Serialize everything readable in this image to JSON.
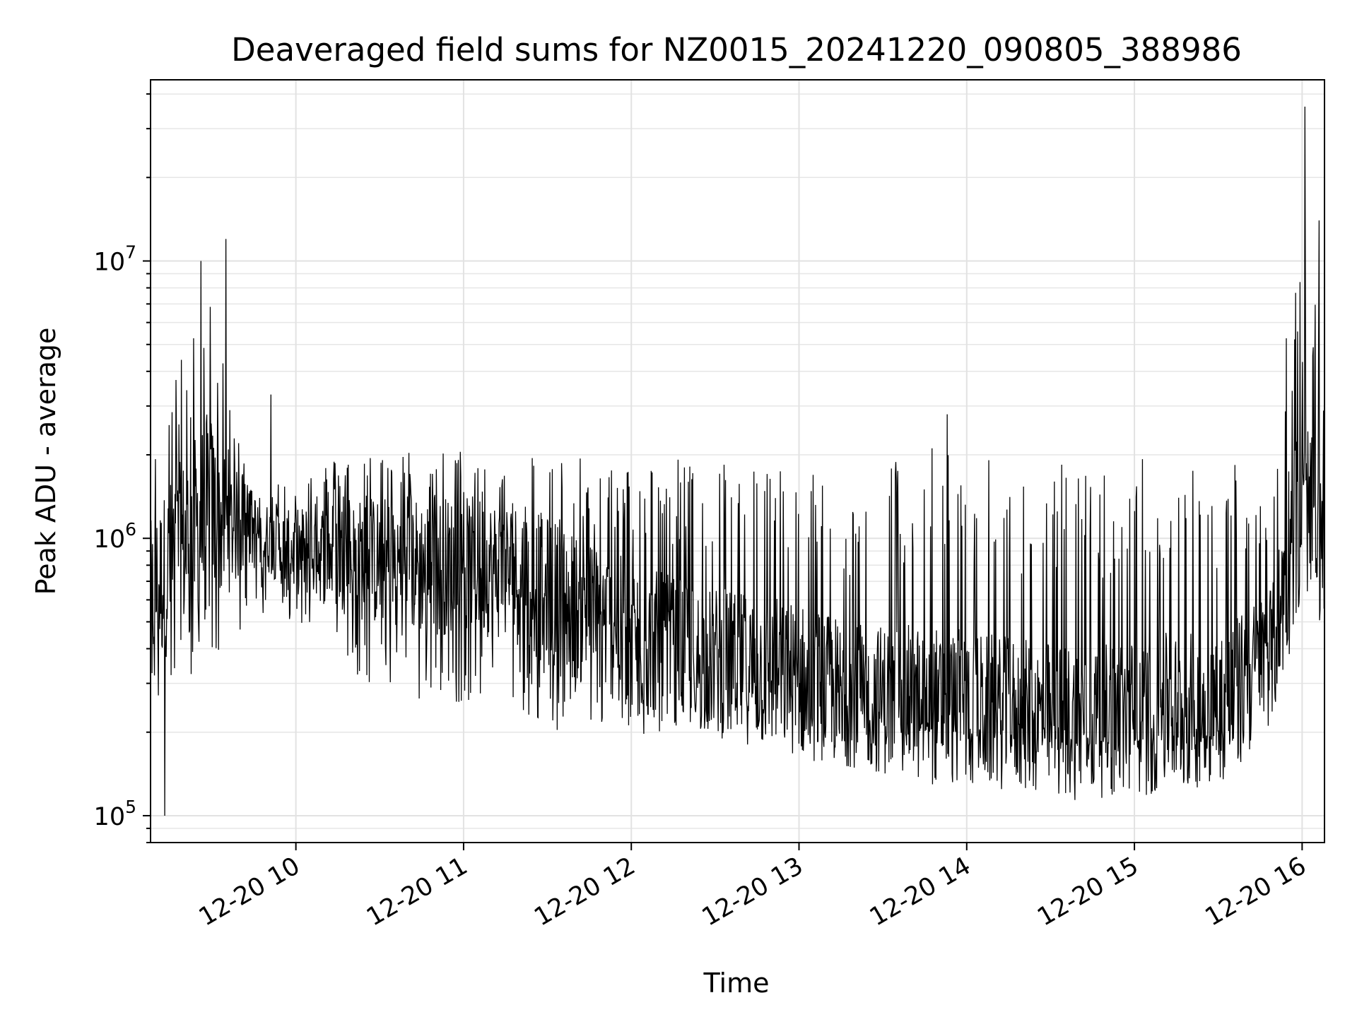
{
  "chart_data": {
    "type": "line",
    "title": "Deaveraged field sums for NZ0015_20241220_090805_388986",
    "xlabel": "Time",
    "ylabel": "Peak ADU - average",
    "yscale": "log",
    "ylim": [
      80000,
      45000000
    ],
    "xlim": [
      "2024-12-20 09:08",
      "2024-12-20 16:08"
    ],
    "grid": true,
    "line_color": "#000000",
    "x_ticks": [
      {
        "value": "2024-12-20 10:00",
        "label": "12-20 10"
      },
      {
        "value": "2024-12-20 11:00",
        "label": "12-20 11"
      },
      {
        "value": "2024-12-20 12:00",
        "label": "12-20 12"
      },
      {
        "value": "2024-12-20 13:00",
        "label": "12-20 13"
      },
      {
        "value": "2024-12-20 14:00",
        "label": "12-20 14"
      },
      {
        "value": "2024-12-20 15:00",
        "label": "12-20 15"
      },
      {
        "value": "2024-12-20 16:00",
        "label": "12-20 16"
      }
    ],
    "y_ticks": [
      {
        "value": 100000,
        "base": "10",
        "exp": "5"
      },
      {
        "value": 1000000,
        "base": "10",
        "exp": "6"
      },
      {
        "value": 10000000,
        "base": "10",
        "exp": "7"
      }
    ],
    "series": [
      {
        "x": [
          "2024-12-20 09:08",
          "2024-12-20 09:15",
          "2024-12-20 09:22",
          "2024-12-20 09:29",
          "2024-12-20 09:36",
          "2024-12-20 09:43",
          "2024-12-20 09:50",
          "2024-12-20 09:57",
          "2024-12-20 10:08",
          "2024-12-20 10:20",
          "2024-12-20 10:35",
          "2024-12-20 10:50",
          "2024-12-20 11:05",
          "2024-12-20 11:20",
          "2024-12-20 11:35",
          "2024-12-20 11:50",
          "2024-12-20 12:05",
          "2024-12-20 12:20",
          "2024-12-20 12:35",
          "2024-12-20 12:50",
          "2024-12-20 13:05",
          "2024-12-20 13:20",
          "2024-12-20 13:35",
          "2024-12-20 13:50",
          "2024-12-20 14:05",
          "2024-12-20 14:20",
          "2024-12-20 14:35",
          "2024-12-20 14:50",
          "2024-12-20 15:05",
          "2024-12-20 15:20",
          "2024-12-20 15:35",
          "2024-12-20 15:50",
          "2024-12-20 15:56",
          "2024-12-20 16:02",
          "2024-12-20 16:08"
        ],
        "low": [
          230000,
          250000,
          300000,
          380000,
          400000,
          500000,
          550000,
          500000,
          400000,
          330000,
          250000,
          250000,
          260000,
          230000,
          190000,
          200000,
          190000,
          210000,
          200000,
          180000,
          170000,
          170000,
          190000,
          200000,
          190000,
          180000,
          170000,
          180000,
          170000,
          170000,
          180000,
          250000,
          400000,
          700000,
          600000
        ],
        "mid": [
          600000,
          800000,
          1000000,
          1200000,
          1100000,
          1100000,
          1000000,
          900000,
          900000,
          850000,
          800000,
          800000,
          800000,
          750000,
          600000,
          500000,
          420000,
          380000,
          350000,
          330000,
          300000,
          270000,
          260000,
          250000,
          240000,
          230000,
          220000,
          220000,
          230000,
          240000,
          260000,
          400000,
          1000000,
          1300000,
          800000
        ],
        "high": [
          2500000,
          3500000,
          5000000,
          10000000,
          3000000,
          1800000,
          1600000,
          1700000,
          1900000,
          2000000,
          2100000,
          2100000,
          2100000,
          2100000,
          2000000,
          1900000,
          1900000,
          2000000,
          2000000,
          1900000,
          1800000,
          1500000,
          2000000,
          2300000,
          2000000,
          1800000,
          1900000,
          1900000,
          2000000,
          1900000,
          2000000,
          2000000,
          9000000,
          10000000,
          5000000
        ],
        "spikes": [
          {
            "x": "2024-12-20 09:13",
            "value": 100000
          },
          {
            "x": "2024-12-20 09:19",
            "value": 4400000
          },
          {
            "x": "2024-12-20 09:26",
            "value": 10000000
          },
          {
            "x": "2024-12-20 09:35",
            "value": 12000000
          },
          {
            "x": "2024-12-20 09:51",
            "value": 3300000
          },
          {
            "x": "2024-12-20 13:53",
            "value": 2800000
          },
          {
            "x": "2024-12-20 15:06",
            "value": 120000
          },
          {
            "x": "2024-12-20 16:01",
            "value": 36000000
          },
          {
            "x": "2024-12-20 16:06",
            "value": 14000000
          }
        ]
      }
    ]
  }
}
